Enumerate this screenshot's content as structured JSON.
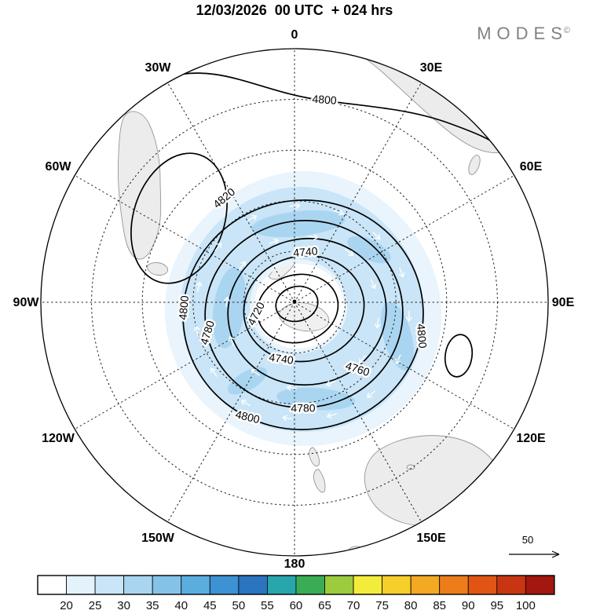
{
  "header": {
    "title": "12/03/2026  00 UTC  + 024 hrs",
    "logo": "MODES",
    "logo_mark": "©"
  },
  "map": {
    "lon_labels": [
      "0",
      "30E",
      "60E",
      "90E",
      "120E",
      "150E",
      "180",
      "150W",
      "120W",
      "90W",
      "60W",
      "30W"
    ],
    "contour_labels": [
      "4800",
      "4820",
      "4800",
      "4780",
      "4740",
      "4720",
      "4740",
      "4760",
      "4780",
      "4800",
      "4800"
    ],
    "wind_reference": {
      "label": "50"
    }
  },
  "colorbar": {
    "tick_labels": [
      "20",
      "25",
      "30",
      "35",
      "40",
      "45",
      "50",
      "55",
      "60",
      "65",
      "70",
      "75",
      "80",
      "85",
      "90",
      "95",
      "100"
    ],
    "colors": [
      "#ffffff",
      "#e3f2fb",
      "#c9e5f7",
      "#a9d5f1",
      "#84c2ea",
      "#5bade0",
      "#3c92d2",
      "#2a74c0",
      "#27a6ac",
      "#3aac55",
      "#9ccb3e",
      "#f4ec3a",
      "#f6cf2b",
      "#f3a922",
      "#ec7d1a",
      "#e15514",
      "#c83513",
      "#a2170f"
    ]
  },
  "chart_data": {
    "type": "heatmap",
    "subtype": "south polar stereographic contour map with shaded field",
    "title": "12/03/2026 00 UTC + 024 hrs",
    "valid_datetime": "12/03/2026 00 UTC",
    "forecast_lead_hrs": 24,
    "branding": "MODES©",
    "contours": {
      "labeled_levels": [
        4720,
        4740,
        4760,
        4780,
        4800,
        4820
      ],
      "interval": 20,
      "structure": "closed circumpolar low centered near the South Pole with concentric contours 4720-4800, a 4820 closed high over southern South America, a 4800 contour crossing the top of the map, and a small closed 4800 cell near 100E"
    },
    "shading": {
      "boundaries": [
        20,
        25,
        30,
        35,
        40,
        45,
        50,
        55,
        60,
        65,
        70,
        75,
        80,
        85,
        90,
        95,
        100
      ],
      "colors": [
        "#ffffff",
        "#e3f2fb",
        "#c9e5f7",
        "#a9d5f1",
        "#84c2ea",
        "#5bade0",
        "#3c92d2",
        "#2a74c0",
        "#27a6ac",
        "#3aac55",
        "#9ccb3e",
        "#f4ec3a",
        "#f6cf2b",
        "#f3a922",
        "#ec7d1a",
        "#e15514",
        "#c83513",
        "#a2170f"
      ],
      "observed_values": "ring of 20-35 shading encircling the polar vortex between roughly the 4740 and 4800 contours"
    },
    "graticule": {
      "meridian_labels": [
        "0",
        "30E",
        "60E",
        "90E",
        "120E",
        "150E",
        "180",
        "150W",
        "120W",
        "90W",
        "60W",
        "30W"
      ],
      "meridian_spacing_deg": 30,
      "latitude_circles": 4
    },
    "wind_reference_arrow": 50
  }
}
